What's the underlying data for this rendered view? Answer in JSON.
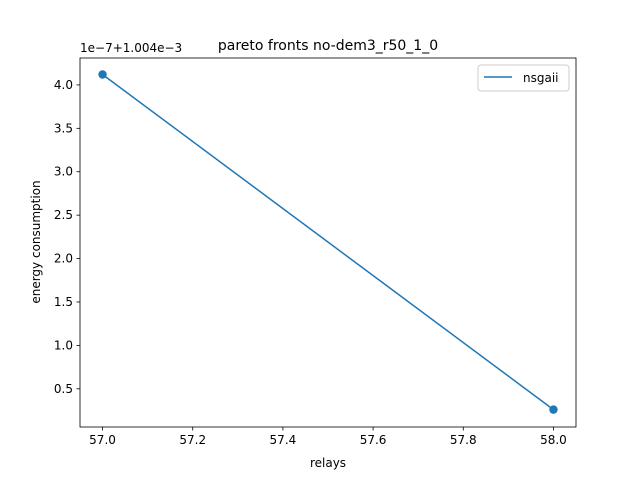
{
  "chart_data": {
    "type": "line",
    "title": "pareto fronts no-dem3_r50_1_0",
    "xlabel": "relays",
    "ylabel": "energy consumption",
    "offset_text": "1e−7+1.004e−3",
    "x_ticks": [
      "57.0",
      "57.2",
      "57.4",
      "57.6",
      "57.8",
      "58.0"
    ],
    "y_ticks": [
      "0.5",
      "1.0",
      "1.5",
      "2.0",
      "2.5",
      "3.0",
      "3.5",
      "4.0"
    ],
    "xlim": [
      56.95,
      58.05
    ],
    "ylim": [
      0.06,
      4.31
    ],
    "grid": false,
    "legend_position": "top-right",
    "series": [
      {
        "name": "nsgaii",
        "color": "#1f77b4",
        "x": [
          57.0,
          58.0
        ],
        "y": [
          4.12,
          0.26
        ]
      }
    ]
  }
}
